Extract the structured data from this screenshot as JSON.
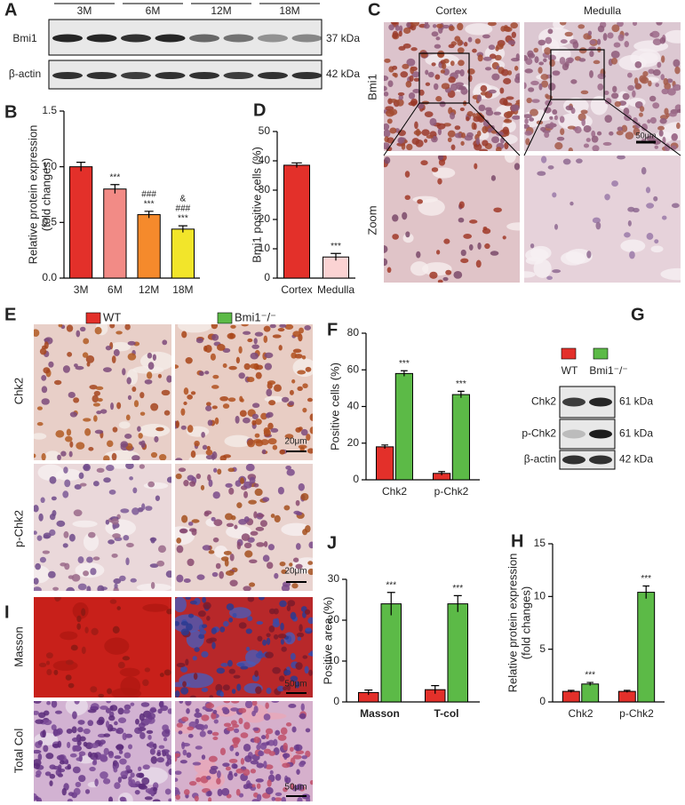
{
  "panel_labels": [
    "A",
    "B",
    "C",
    "D",
    "E",
    "F",
    "G",
    "H",
    "I",
    "J"
  ],
  "blot_a": {
    "groups": [
      "3M",
      "6M",
      "12M",
      "18M"
    ],
    "rows": [
      {
        "label": "Bmi1",
        "size": "37 kDa"
      },
      {
        "label": "β-actin",
        "size": "42 kDa"
      }
    ]
  },
  "blot_g": {
    "rows": [
      {
        "label": "Chk2",
        "size": "61 kDa"
      },
      {
        "label": "p-Chk2",
        "size": "61 kDa"
      },
      {
        "label": "β-actin",
        "size": "42 kDa"
      }
    ]
  },
  "panel_c": {
    "columns": [
      "Cortex",
      "Medulla"
    ],
    "rows": [
      "Bmi1",
      "Zoom"
    ],
    "scale_bar": "50μm"
  },
  "panel_e": {
    "rows": [
      "Chk2",
      "p-Chk2"
    ],
    "scale_bar": "20μm"
  },
  "panel_i": {
    "rows": [
      "Masson",
      "Total Col"
    ],
    "scale_bar": "50μm"
  },
  "chart_data": [
    {
      "type": "bar",
      "ylabel": [
        "Relative protein expression",
        "(fold changes)"
      ],
      "categories": [
        "3M",
        "6M",
        "12M",
        "18M"
      ],
      "values": [
        1.0,
        0.8,
        0.57,
        0.44
      ],
      "errors": [
        0.04,
        0.04,
        0.03,
        0.03
      ],
      "colors": [
        "#e3302a",
        "#f28b86",
        "#f58a2c",
        "#f2e52a"
      ],
      "annotations": [
        null,
        [
          "***"
        ],
        [
          "###",
          "***"
        ],
        [
          "&",
          "###",
          "***"
        ]
      ],
      "ylim": [
        0,
        1.5
      ],
      "yticks": [
        {
          "value": 0,
          "label": "0.0"
        },
        {
          "value": 0.5,
          "label": "0.5"
        },
        {
          "value": 1,
          "label": "1.0"
        },
        {
          "value": 1.5,
          "label": "1.5"
        }
      ]
    },
    {
      "type": "bar",
      "ylabel": "Bmi1 positive cells (%)",
      "categories": [
        "Cortex",
        "Medulla"
      ],
      "values": [
        38.5,
        7.2
      ],
      "errors": [
        0.8,
        1.2
      ],
      "colors": [
        "#e3302a",
        "#fbd3d3"
      ],
      "annotations": [
        null,
        [
          "***"
        ]
      ],
      "ylim": [
        0,
        50
      ],
      "yticks": [
        0,
        10,
        20,
        30,
        40,
        50
      ]
    },
    {
      "type": "bar",
      "ylabel": "Positive cells (%)",
      "categories": [
        "Chk2",
        "p-Chk2"
      ],
      "series": [
        {
          "name": "WT",
          "color": "#e3302a",
          "values": [
            18,
            3.5
          ],
          "errors": [
            1,
            1
          ]
        },
        {
          "name": "Bmi1⁻/⁻",
          "color": "#5cba47",
          "values": [
            58,
            46.5
          ],
          "errors": [
            1.5,
            1.8
          ],
          "annotations": [
            [
              "***"
            ],
            [
              "***"
            ]
          ]
        }
      ],
      "ylim": [
        0,
        80
      ],
      "yticks": [
        0,
        20,
        40,
        60,
        80
      ]
    },
    {
      "type": "bar",
      "ylabel": "Positive area (%)",
      "categories": [
        "Masson",
        "T-col"
      ],
      "series": [
        {
          "name": "WT",
          "color": "#e3302a",
          "values": [
            2.3,
            3
          ],
          "errors": [
            0.6,
            1
          ]
        },
        {
          "name": "Bmi1⁻/⁻",
          "color": "#5cba47",
          "values": [
            24,
            24
          ],
          "errors": [
            2.8,
            2
          ],
          "annotations": [
            [
              "***"
            ],
            [
              "***"
            ]
          ]
        }
      ],
      "ylim": [
        0,
        30
      ],
      "yticks": [
        0,
        10,
        20,
        30
      ]
    },
    {
      "type": "bar",
      "ylabel": [
        "Relative protein expression",
        "(fold changes)"
      ],
      "categories": [
        "Chk2",
        "p-Chk2"
      ],
      "series": [
        {
          "name": "WT",
          "color": "#e3302a",
          "values": [
            1,
            1
          ],
          "errors": [
            0.1,
            0.1
          ]
        },
        {
          "name": "Bmi1⁻/⁻",
          "color": "#5cba47",
          "values": [
            1.7,
            10.4
          ],
          "errors": [
            0.15,
            0.6
          ],
          "annotations": [
            [
              "***"
            ],
            [
              "***"
            ]
          ]
        }
      ],
      "ylim": [
        0,
        15
      ],
      "yticks": [
        0,
        5,
        10,
        15
      ]
    }
  ]
}
